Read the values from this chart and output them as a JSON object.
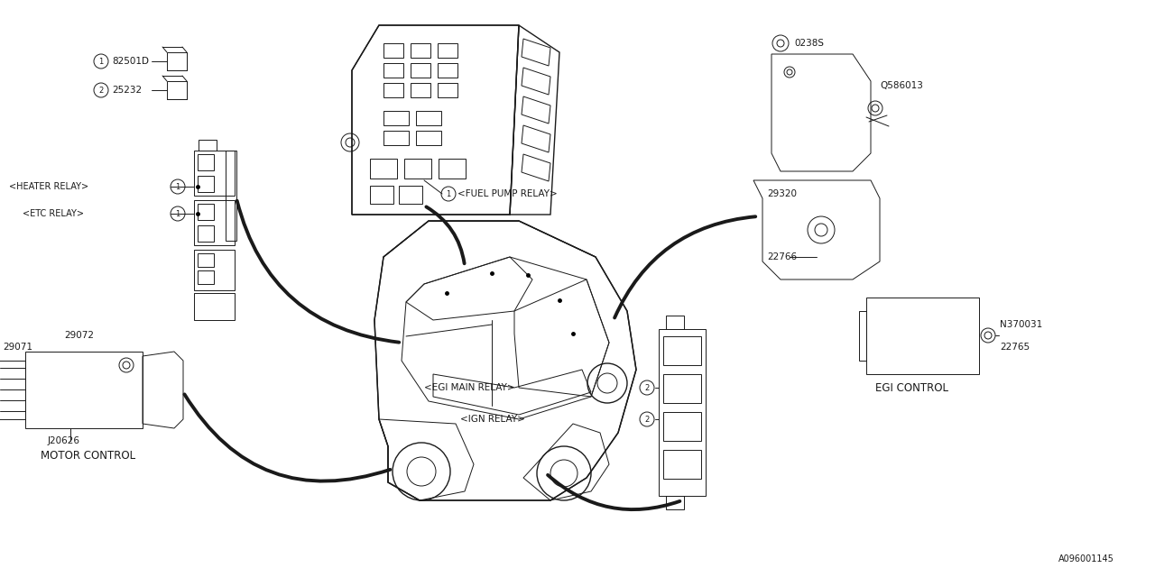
{
  "bg_color": "#FFFFFF",
  "line_color": "#1a1a1a",
  "text_color": "#1a1a1a",
  "fig_width": 12.8,
  "fig_height": 6.4,
  "watermark": "A096001145",
  "lw_thin": 0.7,
  "lw_med": 1.0,
  "lw_thick": 2.8,
  "components": {
    "relay1_label": "82501D",
    "relay2_label": "25232",
    "heater_relay": "<HEATER RELAY>",
    "etc_relay": "<ETC RELAY>",
    "fuel_pump_relay": "<FUEL PUMP RELAY>",
    "egi_main_relay": "<EGI MAIN RELAY>",
    "ign_relay": "<IGN RELAY>",
    "egi_control": "EGI CONTROL",
    "motor_control": "MOTOR CONTROL",
    "part_0238S": "0238S",
    "part_Q586013": "Q586013",
    "part_29320": "29320",
    "part_22766": "22766",
    "part_22765": "22765",
    "part_N370031": "N370031",
    "part_29072": "29072",
    "part_29071": "29071",
    "part_J20626": "J20626"
  }
}
